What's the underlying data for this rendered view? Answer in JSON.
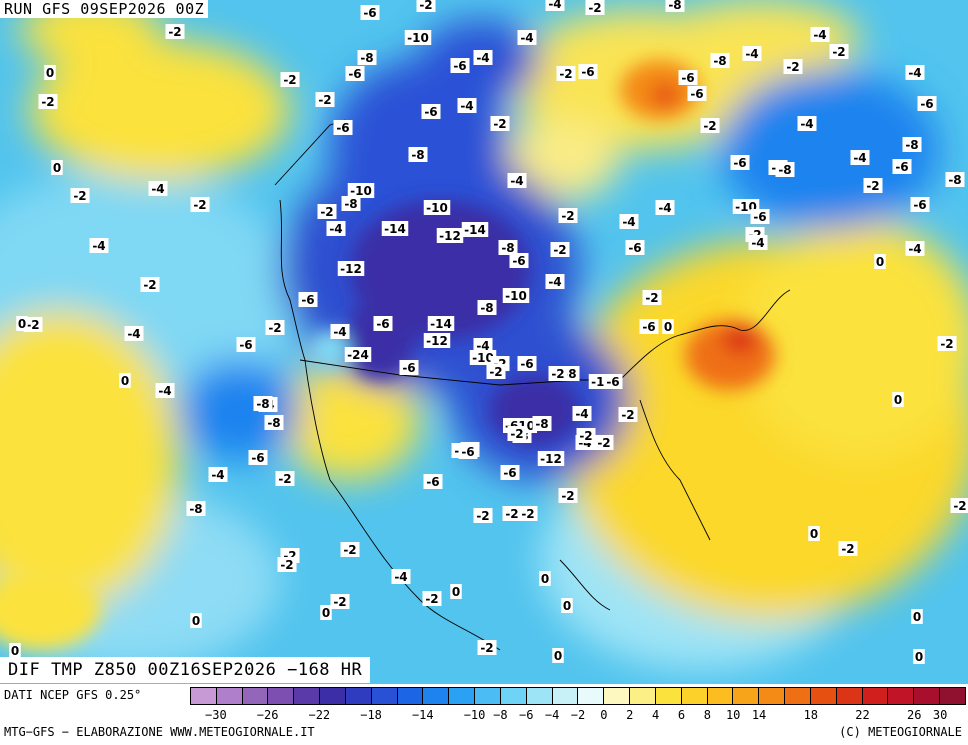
{
  "header": {
    "run_title": "RUN GFS 09SEP2026 00Z",
    "valid_title": "DIF TMP Z850 00Z16SEP2026 −168 HR"
  },
  "footer": {
    "source_note": "DATI NCEP GFS 0.25°",
    "credit_left": "MTG−GFS − ELABORAZIONE WWW.METEOGIORNALE.IT",
    "credit_right": "(C) METEOGIORNALE"
  },
  "legend": {
    "tick_labels": [
      "−30",
      "−26",
      "−22",
      "−18",
      "−14",
      "−10",
      "−8",
      "−6",
      "−4",
      "−2",
      "0",
      "2",
      "4",
      "6",
      "8",
      "10",
      "14",
      "18",
      "22",
      "26",
      "30"
    ],
    "colors": [
      "#c79ad6",
      "#b07fcb",
      "#9466b9",
      "#7d4fb0",
      "#5a3aa8",
      "#3b2ea6",
      "#2f3cc0",
      "#2951d6",
      "#1c66e6",
      "#1f83ef",
      "#2ba1f3",
      "#4cbcf4",
      "#6fd3f6",
      "#9ce4f6",
      "#c8f1f7",
      "#e8fafc",
      "#fdf7c0",
      "#fbef86",
      "#fbe23c",
      "#fcd12a",
      "#fbbd1f",
      "#f8a41b",
      "#f48b17",
      "#ef6f14",
      "#e65112",
      "#dc3416",
      "#d11f1e",
      "#c11426",
      "#a80f2c",
      "#901030"
    ]
  },
  "map_labels": [
    {
      "t": "-2"
    },
    {
      "t": "-6"
    },
    {
      "t": "-2"
    },
    {
      "t": "-4"
    },
    {
      "t": "-2"
    },
    {
      "t": "-8"
    },
    {
      "t": "-2"
    },
    {
      "t": "-10"
    },
    {
      "t": "-6"
    },
    {
      "t": "-4"
    },
    {
      "t": "-4"
    },
    {
      "t": "-2"
    },
    {
      "t": "-8"
    },
    {
      "t": "-6"
    },
    {
      "t": "-8"
    },
    {
      "t": "-2"
    },
    {
      "t": "-4"
    },
    {
      "t": "-4"
    },
    {
      "t": "0"
    },
    {
      "t": "-6"
    },
    {
      "t": "-2"
    },
    {
      "t": "-2"
    },
    {
      "t": "-6"
    },
    {
      "t": "-6"
    },
    {
      "t": "-4"
    },
    {
      "t": "-2"
    },
    {
      "t": "-6"
    },
    {
      "t": "-4"
    },
    {
      "t": "-6"
    },
    {
      "t": "-2"
    },
    {
      "t": "-4"
    },
    {
      "t": "-6"
    },
    {
      "t": "-6"
    },
    {
      "t": "-4"
    },
    {
      "t": "-2"
    },
    {
      "t": "-8"
    },
    {
      "t": "0"
    },
    {
      "t": "-8"
    },
    {
      "t": "-2"
    },
    {
      "t": "-6"
    },
    {
      "t": "-4"
    },
    {
      "t": "-2"
    },
    {
      "t": "-6"
    },
    {
      "t": "-10"
    },
    {
      "t": "-8"
    },
    {
      "t": "-8"
    },
    {
      "t": "-6"
    },
    {
      "t": "-4"
    },
    {
      "t": "-10"
    },
    {
      "t": "-2"
    },
    {
      "t": "-4"
    },
    {
      "t": "-8"
    },
    {
      "t": "-2"
    },
    {
      "t": "-4"
    },
    {
      "t": "-2"
    },
    {
      "t": "-10"
    },
    {
      "t": "-6"
    },
    {
      "t": "-2"
    },
    {
      "t": "-6"
    },
    {
      "t": "-4"
    },
    {
      "t": "-14"
    },
    {
      "t": "-12"
    },
    {
      "t": "-14"
    },
    {
      "t": "-8"
    },
    {
      "t": "-2"
    },
    {
      "t": "-4"
    },
    {
      "t": "-4"
    },
    {
      "t": "-4"
    },
    {
      "t": "-6"
    },
    {
      "t": "-4"
    },
    {
      "t": "-2"
    },
    {
      "t": "-2"
    },
    {
      "t": "0"
    },
    {
      "t": "-2"
    },
    {
      "t": "-12"
    },
    {
      "t": "-6"
    },
    {
      "t": "-4"
    },
    {
      "t": "-10"
    },
    {
      "t": "-2"
    },
    {
      "t": "-6"
    },
    {
      "t": "-8"
    },
    {
      "t": "-2"
    },
    {
      "t": "-6"
    },
    {
      "t": "-4"
    },
    {
      "t": "0"
    },
    {
      "t": "-6"
    },
    {
      "t": "-14"
    },
    {
      "t": "-12"
    },
    {
      "t": "-10"
    },
    {
      "t": "-2"
    },
    {
      "t": "-4"
    },
    {
      "t": "-6"
    },
    {
      "t": "-24"
    },
    {
      "t": "-6"
    },
    {
      "t": "-8"
    },
    {
      "t": "-2"
    },
    {
      "t": "-10"
    },
    {
      "t": "-2"
    },
    {
      "t": "-6"
    },
    {
      "t": "-4"
    },
    {
      "t": "0"
    },
    {
      "t": "-4"
    },
    {
      "t": "-8"
    },
    {
      "t": "-610"
    },
    {
      "t": "-8"
    },
    {
      "t": "-2"
    },
    {
      "t": "-8"
    },
    {
      "t": "-4"
    },
    {
      "t": "-12"
    },
    {
      "t": "-2"
    },
    {
      "t": "-4"
    },
    {
      "t": "-6"
    },
    {
      "t": "-6"
    },
    {
      "t": "-2"
    },
    {
      "t": "-4"
    },
    {
      "t": "-2"
    },
    {
      "t": "-8"
    },
    {
      "t": "-2"
    },
    {
      "t": "-6"
    },
    {
      "t": "0"
    },
    {
      "t": "-2"
    },
    {
      "t": "-6"
    },
    {
      "t": "-2"
    },
    {
      "t": "0"
    },
    {
      "t": "-2"
    },
    {
      "t": "-2"
    },
    {
      "t": "-4"
    },
    {
      "t": "-2"
    },
    {
      "t": "0"
    },
    {
      "t": "-2"
    },
    {
      "t": "0"
    },
    {
      "t": "0"
    },
    {
      "t": "-2"
    },
    {
      "t": "0"
    },
    {
      "t": "0"
    },
    {
      "t": "0"
    },
    {
      "t": "0"
    },
    {
      "t": "-2"
    },
    {
      "t": "0"
    },
    {
      "t": "-2"
    },
    {
      "t": "0"
    },
    {
      "t": "0"
    },
    {
      "t": "-2"
    },
    {
      "t": "-8"
    },
    {
      "t": "-4"
    },
    {
      "t": "-6"
    },
    {
      "t": "-2"
    },
    {
      "t": "-2"
    }
  ]
}
